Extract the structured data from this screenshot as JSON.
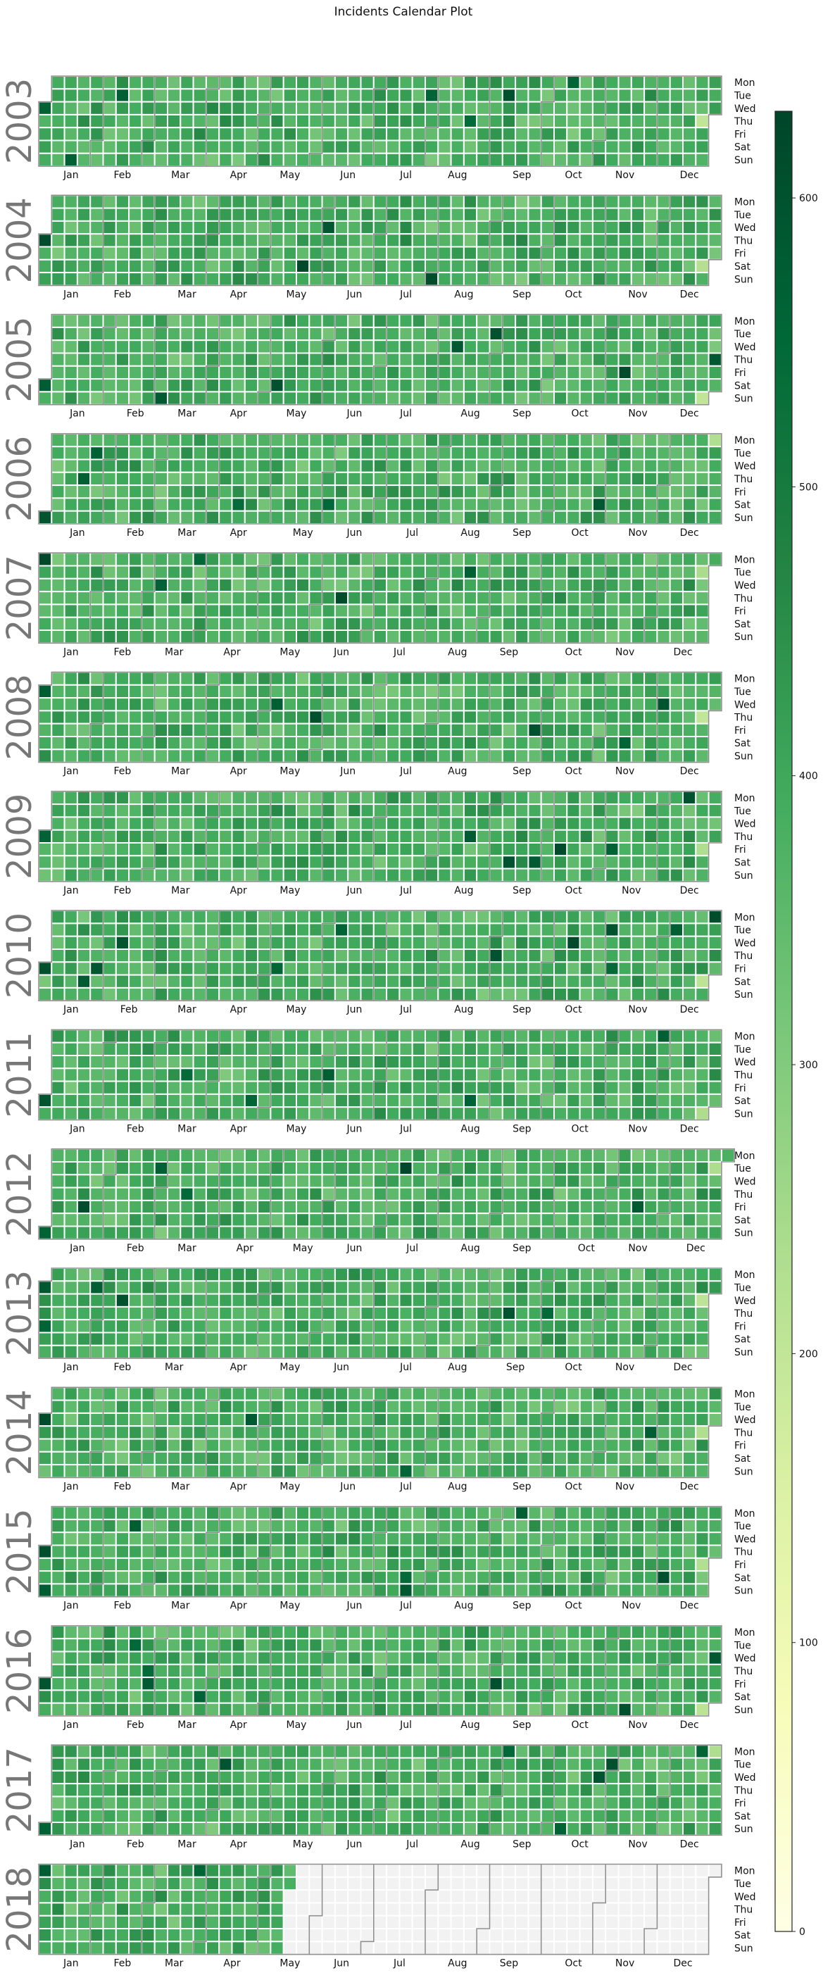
{
  "chart_data": {
    "type": "heatmap",
    "title": "Incidents Calendar Plot",
    "years": [
      "2003",
      "2004",
      "2005",
      "2006",
      "2007",
      "2008",
      "2009",
      "2010",
      "2011",
      "2012",
      "2013",
      "2014",
      "2015",
      "2016",
      "2017",
      "2018"
    ],
    "months": [
      "Jan",
      "Feb",
      "Mar",
      "Apr",
      "May",
      "Jun",
      "Jul",
      "Aug",
      "Sep",
      "Oct",
      "Nov",
      "Dec"
    ],
    "weekdays": [
      "Mon",
      "Tue",
      "Wed",
      "Thu",
      "Fri",
      "Sat",
      "Sun"
    ],
    "colorbar": {
      "ticks": [
        0,
        100,
        200,
        300,
        400,
        500,
        600
      ],
      "vmin": 0,
      "vmax": 630
    },
    "colormap": [
      "#ffffe5",
      "#f7fcb9",
      "#d9f0a3",
      "#addd8e",
      "#78c679",
      "#41ab5d",
      "#238443",
      "#006837",
      "#004529"
    ],
    "missing_color": "#f2f2f2",
    "data_end": "2018-05-15",
    "value_ranges": {
      "typical_low": 300,
      "typical_high": 470
    }
  }
}
